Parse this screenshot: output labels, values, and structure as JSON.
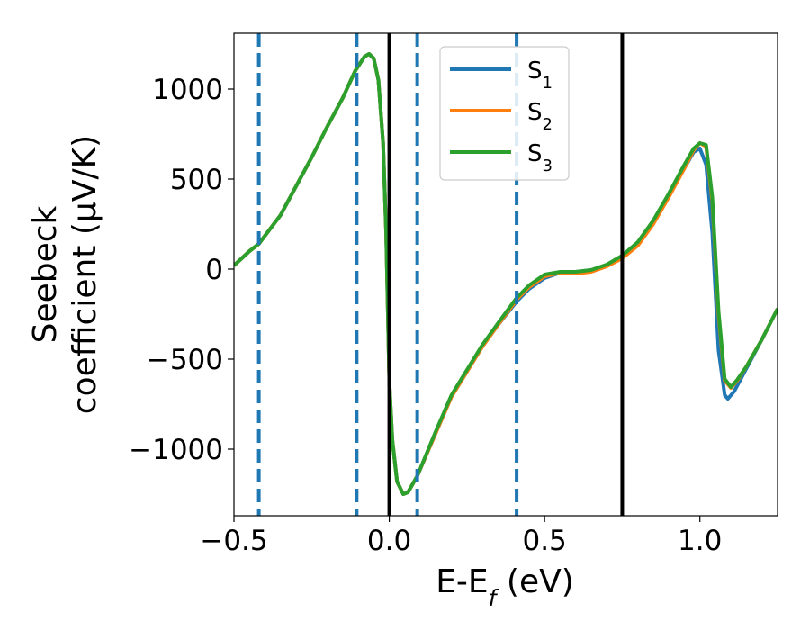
{
  "chart_data": {
    "type": "line",
    "xlabel": "E-E",
    "xlabel_sub": "f",
    "xlabel_unit": " (eV)",
    "ylabel_line1": "Seebeck",
    "ylabel_line2": "coefficient  (μV/K)",
    "xlim": [
      -0.5,
      1.25
    ],
    "ylim": [
      -1370,
      1310
    ],
    "x_ticks": [
      {
        "value": -0.5,
        "label": "−0.5"
      },
      {
        "value": 0.0,
        "label": "0.0"
      },
      {
        "value": 0.5,
        "label": "0.5"
      },
      {
        "value": 1.0,
        "label": "1.0"
      }
    ],
    "y_ticks": [
      {
        "value": -1000,
        "label": "−1000"
      },
      {
        "value": -500,
        "label": "−500"
      },
      {
        "value": 0,
        "label": "0"
      },
      {
        "value": 500,
        "label": "500"
      },
      {
        "value": 1000,
        "label": "1000"
      }
    ],
    "vertical_lines_dashed": [
      -0.42,
      -0.105,
      0.09,
      0.41
    ],
    "vertical_lines_solid": [
      0.0,
      0.75
    ],
    "legend_position": "top-center",
    "series": [
      {
        "name": "S",
        "sub": "1",
        "color": "#1f77b4",
        "points": [
          [
            -0.5,
            20
          ],
          [
            -0.45,
            100
          ],
          [
            -0.42,
            140
          ],
          [
            -0.35,
            300
          ],
          [
            -0.3,
            460
          ],
          [
            -0.25,
            620
          ],
          [
            -0.2,
            790
          ],
          [
            -0.15,
            950
          ],
          [
            -0.11,
            1100
          ],
          [
            -0.08,
            1180
          ],
          [
            -0.065,
            1195
          ],
          [
            -0.05,
            1170
          ],
          [
            -0.035,
            1050
          ],
          [
            -0.02,
            700
          ],
          [
            -0.01,
            200
          ],
          [
            0.0,
            -620
          ],
          [
            0.01,
            -950
          ],
          [
            0.025,
            -1180
          ],
          [
            0.045,
            -1250
          ],
          [
            0.06,
            -1240
          ],
          [
            0.09,
            -1150
          ],
          [
            0.15,
            -910
          ],
          [
            0.2,
            -710
          ],
          [
            0.3,
            -430
          ],
          [
            0.35,
            -310
          ],
          [
            0.41,
            -180
          ],
          [
            0.45,
            -110
          ],
          [
            0.5,
            -50
          ],
          [
            0.55,
            -20
          ],
          [
            0.6,
            -15
          ],
          [
            0.65,
            -5
          ],
          [
            0.7,
            20
          ],
          [
            0.75,
            70
          ],
          [
            0.8,
            140
          ],
          [
            0.85,
            260
          ],
          [
            0.9,
            410
          ],
          [
            0.95,
            560
          ],
          [
            0.98,
            650
          ],
          [
            1.0,
            670
          ],
          [
            1.02,
            580
          ],
          [
            1.04,
            200
          ],
          [
            1.06,
            -450
          ],
          [
            1.08,
            -700
          ],
          [
            1.09,
            -720
          ],
          [
            1.11,
            -680
          ],
          [
            1.15,
            -550
          ],
          [
            1.2,
            -390
          ],
          [
            1.25,
            -220
          ]
        ]
      },
      {
        "name": "S",
        "sub": "2",
        "color": "#ff7f0e",
        "points": [
          [
            -0.5,
            20
          ],
          [
            -0.45,
            100
          ],
          [
            -0.42,
            140
          ],
          [
            -0.35,
            300
          ],
          [
            -0.3,
            460
          ],
          [
            -0.25,
            620
          ],
          [
            -0.2,
            790
          ],
          [
            -0.15,
            950
          ],
          [
            -0.11,
            1100
          ],
          [
            -0.08,
            1180
          ],
          [
            -0.065,
            1195
          ],
          [
            -0.05,
            1170
          ],
          [
            -0.035,
            1050
          ],
          [
            -0.02,
            700
          ],
          [
            -0.01,
            200
          ],
          [
            0.0,
            -620
          ],
          [
            0.01,
            -950
          ],
          [
            0.025,
            -1180
          ],
          [
            0.045,
            -1250
          ],
          [
            0.06,
            -1240
          ],
          [
            0.09,
            -1150
          ],
          [
            0.15,
            -910
          ],
          [
            0.2,
            -710
          ],
          [
            0.3,
            -430
          ],
          [
            0.35,
            -310
          ],
          [
            0.41,
            -170
          ],
          [
            0.45,
            -100
          ],
          [
            0.5,
            -40
          ],
          [
            0.55,
            -20
          ],
          [
            0.6,
            -25
          ],
          [
            0.65,
            -15
          ],
          [
            0.7,
            15
          ],
          [
            0.75,
            60
          ],
          [
            0.8,
            130
          ],
          [
            0.85,
            250
          ],
          [
            0.9,
            400
          ],
          [
            0.95,
            560
          ],
          [
            0.98,
            660
          ],
          [
            1.0,
            700
          ],
          [
            1.02,
            680
          ],
          [
            1.04,
            380
          ],
          [
            1.06,
            -250
          ],
          [
            1.08,
            -620
          ],
          [
            1.1,
            -660
          ],
          [
            1.12,
            -620
          ],
          [
            1.15,
            -540
          ],
          [
            1.2,
            -390
          ],
          [
            1.25,
            -220
          ]
        ]
      },
      {
        "name": "S",
        "sub": "3",
        "color": "#2ca02c",
        "points": [
          [
            -0.5,
            20
          ],
          [
            -0.45,
            100
          ],
          [
            -0.42,
            140
          ],
          [
            -0.35,
            300
          ],
          [
            -0.3,
            460
          ],
          [
            -0.25,
            620
          ],
          [
            -0.2,
            790
          ],
          [
            -0.15,
            950
          ],
          [
            -0.11,
            1100
          ],
          [
            -0.08,
            1180
          ],
          [
            -0.065,
            1195
          ],
          [
            -0.05,
            1170
          ],
          [
            -0.035,
            1050
          ],
          [
            -0.02,
            700
          ],
          [
            -0.01,
            200
          ],
          [
            0.0,
            -620
          ],
          [
            0.01,
            -950
          ],
          [
            0.025,
            -1180
          ],
          [
            0.045,
            -1250
          ],
          [
            0.06,
            -1240
          ],
          [
            0.09,
            -1150
          ],
          [
            0.15,
            -900
          ],
          [
            0.2,
            -700
          ],
          [
            0.3,
            -420
          ],
          [
            0.35,
            -300
          ],
          [
            0.41,
            -160
          ],
          [
            0.45,
            -90
          ],
          [
            0.5,
            -30
          ],
          [
            0.55,
            -15
          ],
          [
            0.6,
            -15
          ],
          [
            0.65,
            -5
          ],
          [
            0.7,
            25
          ],
          [
            0.75,
            75
          ],
          [
            0.8,
            150
          ],
          [
            0.85,
            270
          ],
          [
            0.9,
            420
          ],
          [
            0.95,
            580
          ],
          [
            0.98,
            670
          ],
          [
            1.0,
            700
          ],
          [
            1.02,
            690
          ],
          [
            1.04,
            400
          ],
          [
            1.06,
            -230
          ],
          [
            1.08,
            -610
          ],
          [
            1.1,
            -655
          ],
          [
            1.12,
            -615
          ],
          [
            1.15,
            -540
          ],
          [
            1.2,
            -390
          ],
          [
            1.25,
            -220
          ]
        ]
      }
    ]
  }
}
